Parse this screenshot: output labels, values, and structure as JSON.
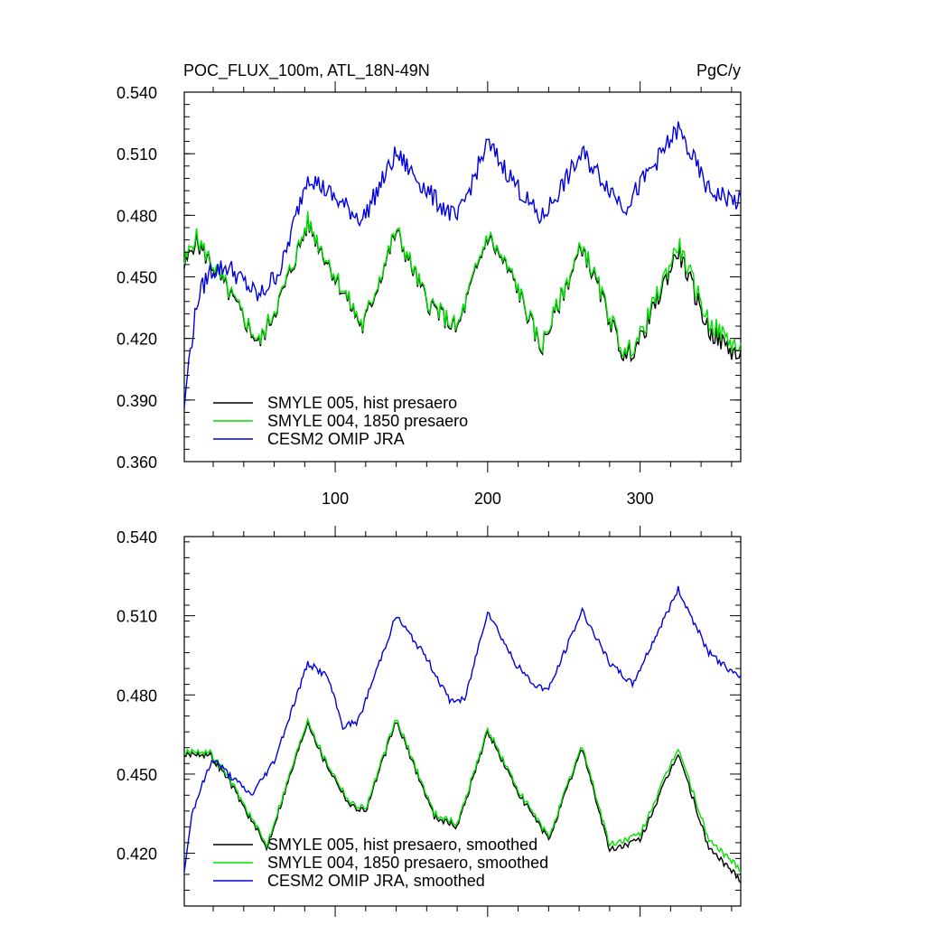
{
  "chart_data": [
    {
      "type": "line",
      "title": "POC_FLUX_100m, ATL_18N-49N",
      "units": "PgC/y",
      "xlabel": "",
      "ylabel": "",
      "xlim": [
        1,
        366
      ],
      "ylim": [
        0.36,
        0.54
      ],
      "xticks": [
        100,
        200,
        300
      ],
      "xtick_labels": [
        "100",
        "200",
        "300"
      ],
      "yticks": [
        0.36,
        0.39,
        0.42,
        0.45,
        0.48,
        0.51,
        0.54
      ],
      "ytick_labels": [
        "0.360",
        "0.390",
        "0.420",
        "0.450",
        "0.480",
        "0.510",
        "0.540"
      ],
      "grid": false,
      "legend_position": "bottom-left",
      "series": [
        {
          "name": "SMYLE 005, hist presaero",
          "color": "#000000",
          "x": [
            1,
            8,
            20,
            35,
            50,
            65,
            82,
            100,
            118,
            140,
            160,
            180,
            200,
            218,
            235,
            262,
            290,
            300,
            325,
            345,
            366
          ],
          "values": [
            0.454,
            0.468,
            0.455,
            0.436,
            0.417,
            0.441,
            0.476,
            0.45,
            0.425,
            0.472,
            0.438,
            0.424,
            0.47,
            0.447,
            0.415,
            0.465,
            0.41,
            0.419,
            0.463,
            0.424,
            0.41
          ]
        },
        {
          "name": "SMYLE 004, 1850 presaero",
          "color": "#00e000",
          "x": [
            1,
            8,
            20,
            35,
            50,
            65,
            82,
            100,
            118,
            140,
            160,
            180,
            200,
            218,
            235,
            262,
            290,
            300,
            325,
            345,
            366
          ],
          "values": [
            0.456,
            0.47,
            0.456,
            0.437,
            0.418,
            0.442,
            0.477,
            0.451,
            0.426,
            0.473,
            0.439,
            0.425,
            0.471,
            0.448,
            0.416,
            0.466,
            0.412,
            0.421,
            0.466,
            0.428,
            0.414
          ]
        },
        {
          "name": "CESM2 OMIP JRA",
          "color": "#0000dd",
          "x": [
            1,
            4,
            10,
            18,
            30,
            50,
            65,
            82,
            100,
            118,
            140,
            165,
            180,
            200,
            225,
            235,
            262,
            290,
            325,
            345,
            366
          ],
          "values": [
            0.386,
            0.41,
            0.44,
            0.453,
            0.455,
            0.44,
            0.455,
            0.5,
            0.488,
            0.478,
            0.51,
            0.488,
            0.478,
            0.515,
            0.488,
            0.478,
            0.51,
            0.484,
            0.522,
            0.492,
            0.486
          ]
        }
      ]
    },
    {
      "type": "line",
      "title": "",
      "units": "",
      "xlabel": "",
      "ylabel": "",
      "xlim": [
        1,
        366
      ],
      "ylim": [
        0.4,
        0.54
      ],
      "xticks": [
        100,
        200,
        300
      ],
      "xtick_labels": [
        "",
        "",
        ""
      ],
      "yticks": [
        0.42,
        0.45,
        0.48,
        0.51,
        0.54
      ],
      "ytick_labels": [
        "0.420",
        "0.450",
        "0.480",
        "0.510",
        "0.540"
      ],
      "grid": false,
      "legend_position": "bottom-left",
      "series": [
        {
          "name": "SMYLE 005, hist presaero, smoothed",
          "color": "#000000",
          "x": [
            1,
            8,
            18,
            30,
            55,
            82,
            92,
            110,
            120,
            140,
            165,
            180,
            200,
            220,
            240,
            262,
            280,
            300,
            325,
            345,
            366
          ],
          "values": [
            0.457,
            0.458,
            0.457,
            0.448,
            0.422,
            0.47,
            0.456,
            0.438,
            0.436,
            0.47,
            0.434,
            0.43,
            0.466,
            0.443,
            0.425,
            0.46,
            0.421,
            0.425,
            0.458,
            0.422,
            0.41
          ]
        },
        {
          "name": "SMYLE 004, 1850 presaero, smoothed",
          "color": "#00e000",
          "x": [
            1,
            8,
            18,
            30,
            55,
            82,
            92,
            110,
            120,
            140,
            165,
            180,
            200,
            220,
            240,
            262,
            280,
            300,
            325,
            345,
            366
          ],
          "values": [
            0.458,
            0.459,
            0.458,
            0.449,
            0.423,
            0.471,
            0.457,
            0.439,
            0.437,
            0.471,
            0.435,
            0.431,
            0.467,
            0.444,
            0.426,
            0.461,
            0.423,
            0.427,
            0.46,
            0.425,
            0.414
          ]
        },
        {
          "name": "CESM2 OMIP JRA, smoothed",
          "color": "#0000dd",
          "x": [
            1,
            6,
            12,
            20,
            30,
            45,
            60,
            82,
            95,
            105,
            115,
            140,
            160,
            175,
            185,
            200,
            218,
            230,
            240,
            262,
            280,
            295,
            325,
            345,
            366
          ],
          "values": [
            0.413,
            0.435,
            0.445,
            0.456,
            0.45,
            0.442,
            0.455,
            0.492,
            0.487,
            0.468,
            0.47,
            0.51,
            0.494,
            0.478,
            0.478,
            0.512,
            0.492,
            0.484,
            0.482,
            0.512,
            0.492,
            0.484,
            0.52,
            0.496,
            0.486
          ]
        }
      ]
    }
  ]
}
